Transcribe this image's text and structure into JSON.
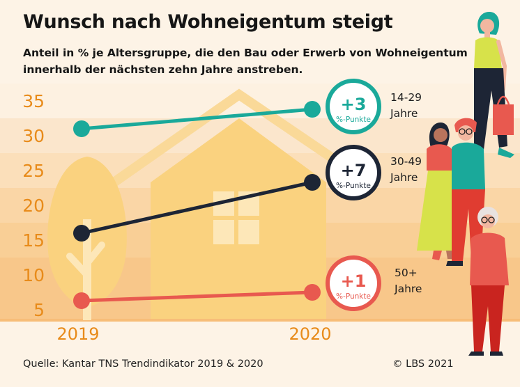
{
  "title": "Wunsch nach Wohneigentum steigt",
  "subtitle_line1": "Anteil in % je Altersgruppe, die den Bau oder Erwerb von Wohneigentum",
  "subtitle_line2": "innerhalb der nächsten zehn Jahre anstreben.",
  "source": "Quelle: Kantar TNS Trendindikator 2019 & 2020",
  "copyright": "© LBS 2021",
  "chart_data": {
    "type": "line",
    "title": "Wunsch nach Wohneigentum steigt",
    "x": [
      "2019",
      "2020"
    ],
    "y_ticks": [
      5,
      10,
      15,
      20,
      25,
      30,
      35
    ],
    "ylim": [
      5,
      35
    ],
    "ylabel": "",
    "xlabel": "",
    "series": [
      {
        "name": "14-29 Jahre",
        "age_range": "14-29",
        "age_unit": "Jahre",
        "values": [
          31,
          33.8
        ],
        "change_value": "+3",
        "change_unit": "%-Punkte",
        "color": "#1aa99a"
      },
      {
        "name": "30-49 Jahre",
        "age_range": "30-49",
        "age_unit": "Jahre",
        "values": [
          16,
          23.3
        ],
        "change_value": "+7",
        "change_unit": "%-Punkte",
        "color": "#1d2535"
      },
      {
        "name": "50+ Jahre",
        "age_range": "50+",
        "age_unit": "Jahre",
        "values": [
          6.3,
          7.5
        ],
        "change_value": "+1",
        "change_unit": "%-Punkte",
        "color": "#e8594f"
      }
    ]
  },
  "colors": {
    "background": "#fdf3e6",
    "axis_text": "#e88b1a",
    "house": "#fad27f"
  }
}
